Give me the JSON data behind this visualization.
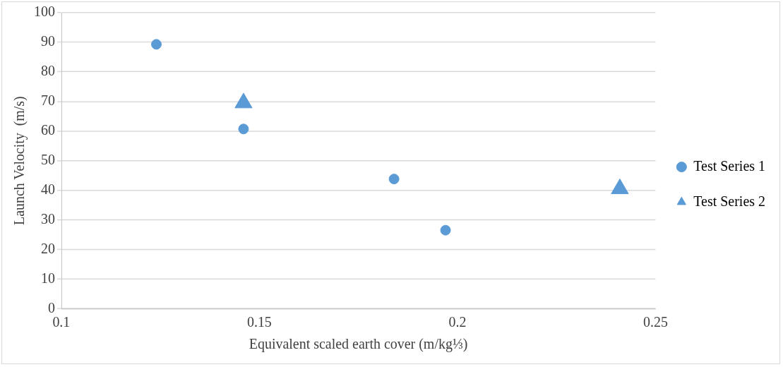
{
  "chart_data": {
    "type": "scatter",
    "xlabel": "Equivalent scaled earth cover (m/kg⅓)",
    "ylabel": "Launch Velocity  (m/s)",
    "xlim": [
      0.1,
      0.25
    ],
    "xticks": [
      0.1,
      0.15,
      0.2,
      0.25
    ],
    "ylim": [
      0,
      100
    ],
    "yticks": [
      0,
      10,
      20,
      30,
      40,
      50,
      60,
      70,
      80,
      90,
      100
    ],
    "grid": "y",
    "legend": "right",
    "series": [
      {
        "name": "Test Series 1",
        "color": "#5b9bd5",
        "marker": "circle",
        "x": [
          0.124,
          0.146,
          0.184,
          0.197
        ],
        "values": [
          89.3,
          60.7,
          43.8,
          26.5
        ]
      },
      {
        "name": "Test Series 2",
        "color": "#5b9bd5",
        "marker": "triangle",
        "x": [
          0.146,
          0.241
        ],
        "values": [
          69.5,
          40.5
        ]
      }
    ]
  }
}
